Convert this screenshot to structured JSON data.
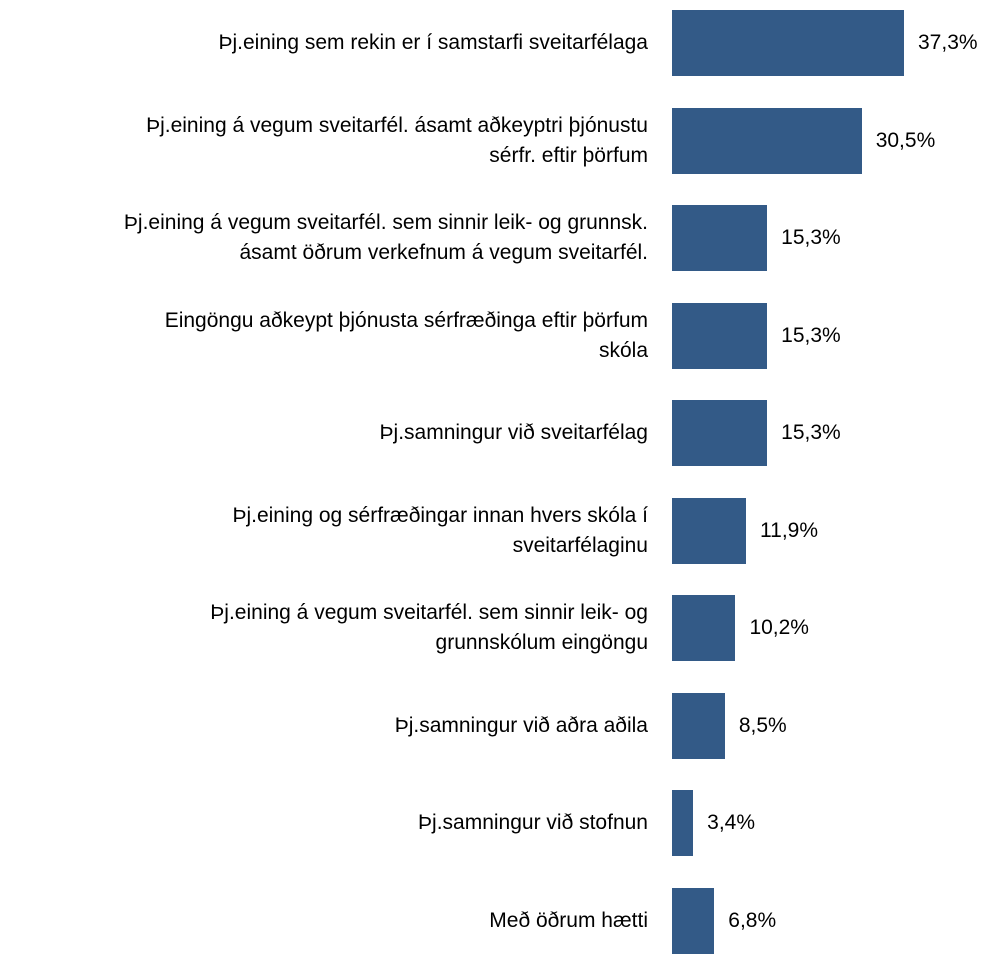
{
  "chart_data": {
    "type": "bar",
    "orientation": "horizontal",
    "categories": [
      "Þj.eining sem rekin er í samstarfi sveitarfélaga",
      "Þj.eining á vegum sveitarfél. ásamt aðkeyptri þjónustu\nsérfr. eftir þörfum",
      "Þj.eining á vegum sveitarfél. sem sinnir leik- og grunnsk.\násamt öðrum verkefnum á vegum sveitarfél.",
      "Eingöngu aðkeypt þjónusta sérfræðinga eftir þörfum\nskóla",
      "Þj.samningur við sveitarfélag",
      "Þj.eining og sérfræðingar innan hvers skóla í\nsveitarfélaginu",
      "Þj.eining á vegum sveitarfél. sem sinnir leik- og\ngrunnskólum eingöngu",
      "Þj.samningur við aðra aðila",
      "Þj.samningur við stofnun",
      "Með öðrum hætti"
    ],
    "values": [
      37.3,
      30.5,
      15.3,
      15.3,
      15.3,
      11.9,
      10.2,
      8.5,
      3.4,
      6.8
    ],
    "value_labels": [
      "37,3%",
      "30,5%",
      "15,3%",
      "15,3%",
      "15,3%",
      "11,9%",
      "10,2%",
      "8,5%",
      "3,4%",
      "6,8%"
    ],
    "bar_color": "#335a87",
    "xlim": [
      0,
      40
    ],
    "grid": false,
    "legend": "none"
  }
}
